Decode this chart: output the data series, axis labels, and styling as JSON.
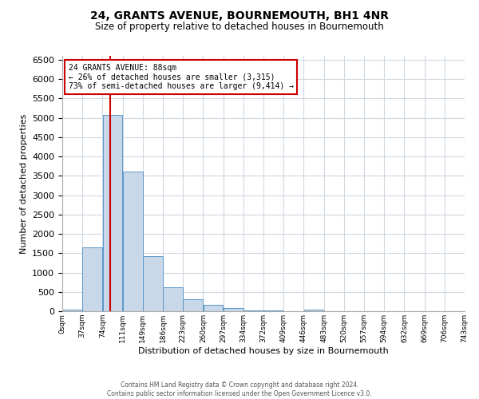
{
  "title": "24, GRANTS AVENUE, BOURNEMOUTH, BH1 4NR",
  "subtitle": "Size of property relative to detached houses in Bournemouth",
  "xlabel": "Distribution of detached houses by size in Bournemouth",
  "ylabel": "Number of detached properties",
  "footer_lines": [
    "Contains HM Land Registry data © Crown copyright and database right 2024.",
    "Contains public sector information licensed under the Open Government Licence v3.0."
  ],
  "bin_edges": [
    0,
    37,
    74,
    111,
    148,
    185,
    222,
    259,
    296,
    333,
    370,
    407,
    444,
    481,
    518,
    555,
    592,
    629,
    666,
    703,
    740
  ],
  "bin_labels": [
    "0sqm",
    "37sqm",
    "74sqm",
    "111sqm",
    "149sqm",
    "186sqm",
    "223sqm",
    "260sqm",
    "297sqm",
    "334sqm",
    "372sqm",
    "409sqm",
    "446sqm",
    "483sqm",
    "520sqm",
    "557sqm",
    "594sqm",
    "632sqm",
    "669sqm",
    "706sqm",
    "743sqm"
  ],
  "bar_heights": [
    50,
    1650,
    5080,
    3600,
    1420,
    610,
    300,
    155,
    80,
    30,
    15,
    10,
    50,
    0,
    0,
    0,
    0,
    0,
    0,
    0
  ],
  "bar_color": "#c8d8e8",
  "bar_edge_color": "#5a96c8",
  "property_size": 88,
  "property_label": "24 GRANTS AVENUE: 88sqm",
  "annotation_line1": "← 26% of detached houses are smaller (3,315)",
  "annotation_line2": "73% of semi-detached houses are larger (9,414) →",
  "vline_color": "#cc0000",
  "annotation_box_color": "#cc0000",
  "ylim": [
    0,
    6600
  ],
  "xlim": [
    0,
    740
  ],
  "yticks": [
    0,
    500,
    1000,
    1500,
    2000,
    2500,
    3000,
    3500,
    4000,
    4500,
    5000,
    5500,
    6000,
    6500
  ],
  "background_color": "#ffffff",
  "grid_color": "#d0d8e0"
}
